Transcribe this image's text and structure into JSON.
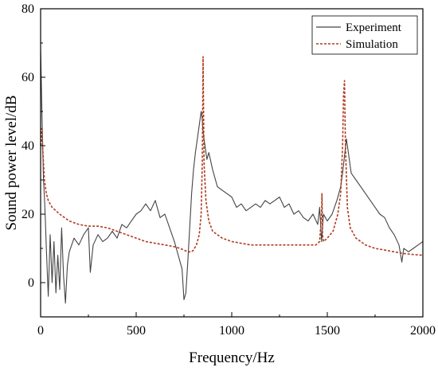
{
  "chart_data": {
    "type": "line",
    "title": "",
    "xlabel": "Frequency/Hz",
    "ylabel": "Sound power level/dB",
    "xlim": [
      0,
      2000
    ],
    "ylim": [
      -10,
      80
    ],
    "xticks": [
      0,
      500,
      1000,
      1500,
      2000
    ],
    "yticks": [
      0,
      20,
      40,
      60,
      80
    ],
    "xtick_labels": [
      "0",
      "500",
      "1000",
      "1500",
      "2000"
    ],
    "ytick_labels": [
      "0",
      "20",
      "40",
      "60",
      "80"
    ],
    "grid": false,
    "legend": "top-right",
    "series": [
      {
        "name": "Experiment",
        "color": "#444444",
        "style": "solid",
        "x": [
          0,
          5,
          10,
          15,
          20,
          25,
          30,
          40,
          50,
          60,
          70,
          80,
          90,
          100,
          110,
          120,
          130,
          140,
          150,
          175,
          200,
          225,
          250,
          260,
          275,
          300,
          325,
          350,
          375,
          400,
          425,
          450,
          475,
          500,
          525,
          550,
          575,
          600,
          625,
          650,
          675,
          700,
          720,
          740,
          750,
          760,
          770,
          780,
          790,
          800,
          810,
          820,
          830,
          840,
          845,
          850,
          860,
          870,
          880,
          900,
          925,
          950,
          975,
          1000,
          1025,
          1050,
          1075,
          1100,
          1125,
          1150,
          1175,
          1200,
          1225,
          1250,
          1275,
          1300,
          1325,
          1350,
          1375,
          1400,
          1425,
          1450,
          1460,
          1470,
          1480,
          1500,
          1525,
          1550,
          1570,
          1580,
          1590,
          1600,
          1610,
          1625,
          1650,
          1675,
          1700,
          1725,
          1750,
          1775,
          1800,
          1825,
          1850,
          1875,
          1890,
          1900,
          1925,
          1950,
          1975,
          2000
        ],
        "y": [
          68,
          55,
          42,
          30,
          25,
          18,
          10,
          -4,
          14,
          0,
          12,
          -3,
          8,
          -2,
          16,
          2,
          -6,
          5,
          9,
          13,
          11,
          14,
          16,
          3,
          11,
          14,
          12,
          13,
          15,
          13,
          17,
          16,
          18,
          20,
          21,
          23,
          21,
          24,
          19,
          20,
          16,
          12,
          8,
          4,
          -5,
          -3,
          6,
          16,
          26,
          33,
          38,
          42,
          46,
          50,
          48,
          44,
          40,
          36,
          38,
          33,
          28,
          27,
          26,
          25,
          22,
          23,
          21,
          22,
          23,
          22,
          24,
          23,
          24,
          25,
          22,
          23,
          20,
          21,
          19,
          18,
          20,
          17,
          22,
          12,
          20,
          18,
          20,
          24,
          28,
          32,
          37,
          42,
          38,
          32,
          30,
          28,
          26,
          24,
          22,
          20,
          19,
          16,
          14,
          11,
          6,
          10,
          9,
          10,
          11,
          12
        ]
      },
      {
        "name": "Simulation",
        "color": "#b03a1e",
        "style": "dashed",
        "x": [
          0,
          5,
          10,
          15,
          20,
          30,
          40,
          60,
          80,
          100,
          150,
          200,
          250,
          300,
          350,
          400,
          450,
          500,
          550,
          600,
          650,
          700,
          730,
          750,
          770,
          790,
          800,
          815,
          830,
          840,
          846,
          850,
          855,
          865,
          880,
          900,
          950,
          1000,
          1050,
          1100,
          1150,
          1200,
          1250,
          1300,
          1350,
          1400,
          1440,
          1460,
          1470,
          1472,
          1475,
          1480,
          1500,
          1530,
          1555,
          1570,
          1580,
          1585,
          1590,
          1595,
          1605,
          1620,
          1650,
          1700,
          1750,
          1800,
          1850,
          1900,
          1950,
          2000
        ],
        "y": [
          40,
          45,
          40,
          35,
          30,
          26,
          24,
          22,
          21,
          20,
          18,
          17,
          16.5,
          16.5,
          16,
          15,
          14,
          13,
          12,
          11.5,
          11,
          10.5,
          10,
          9.5,
          9,
          9,
          9.5,
          11,
          14,
          20,
          35,
          66,
          35,
          24,
          18,
          15,
          13,
          12,
          11.5,
          11,
          11,
          11,
          11,
          11,
          11,
          11,
          11,
          12,
          20,
          26,
          14,
          12,
          13,
          15,
          20,
          26,
          40,
          55,
          59,
          40,
          22,
          16,
          13,
          11,
          10,
          9.5,
          9,
          8.5,
          8.2,
          8
        ]
      }
    ]
  }
}
